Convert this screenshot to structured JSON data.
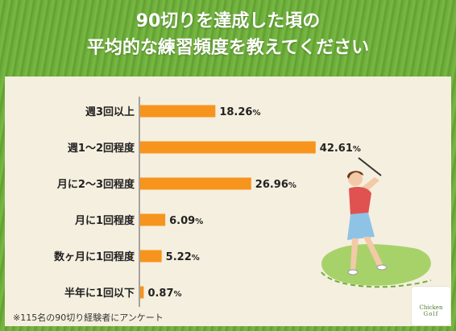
{
  "title_line1": "90切りを達成した頃の",
  "title_line2": "平均的な練習頻度を教えてください",
  "footnote": "※115名の90切り経験者にアンケート",
  "logo_line1": "Chicken",
  "logo_line2": "Golf",
  "colors": {
    "bar": "#f7941d",
    "axis": "#555555",
    "panel": "#f5efdf",
    "grass": "#6fae3c"
  },
  "chart_data": {
    "type": "bar",
    "orientation": "horizontal",
    "title": "90切りを達成した頃の平均的な練習頻度を教えてください",
    "unit": "%",
    "categories": [
      "週3回以上",
      "週1〜2回程度",
      "月に2〜3回程度",
      "月に1回程度",
      "数ヶ月に1回程度",
      "半年に1回以下"
    ],
    "values": [
      18.26,
      42.61,
      26.96,
      6.09,
      5.22,
      0.87
    ],
    "xlim": [
      0,
      45
    ],
    "grid": false,
    "legend": "none"
  }
}
